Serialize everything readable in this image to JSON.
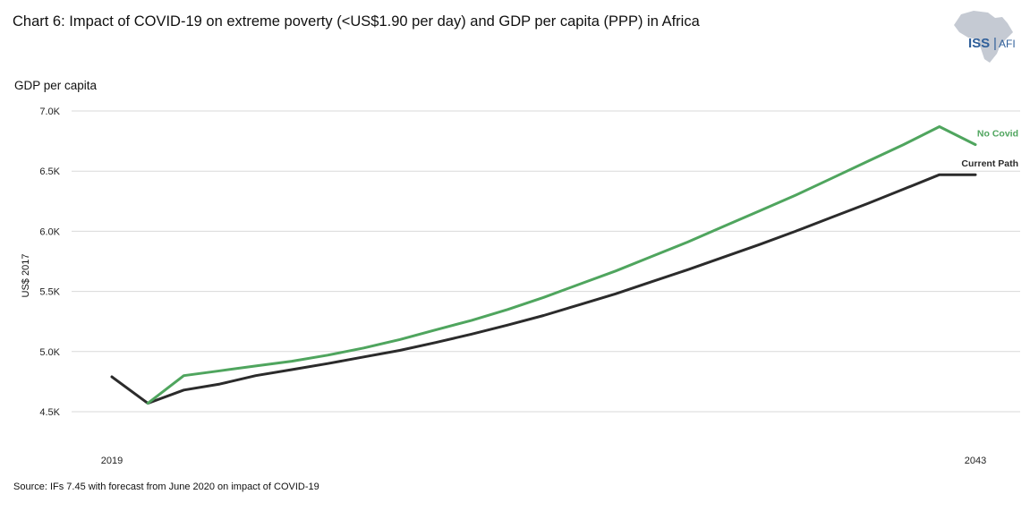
{
  "title": "Chart 6: Impact of COVID-19 on extreme poverty (<US$1.90 per day) and GDP per capita (PPP) in Africa",
  "subtitle": "GDP per capita",
  "source": "Source: IFs 7.45 with forecast from June 2020 on impact of COVID-19",
  "logo": {
    "name": "africa-map-icon",
    "text_iss": "ISS",
    "text_afi": "AFI"
  },
  "colors": {
    "no_covid": "#4fa55e",
    "current_path": "#2b2b2b",
    "grid": "#d9d9d9",
    "logo_map": "#c5cad3",
    "logo_text": "#2f5f9a"
  },
  "chart_data": {
    "type": "line",
    "title": "Chart 6: Impact of COVID-19 on extreme poverty (<US$1.90 per day) and GDP per capita (PPP) in Africa",
    "xlabel": "",
    "ylabel": "US$ 2017",
    "ylim": [
      4500,
      7000
    ],
    "y_ticks": [
      4500,
      5000,
      5500,
      6000,
      6500,
      7000
    ],
    "y_tick_labels": [
      "4.5K",
      "5.0K",
      "5.5K",
      "6.0K",
      "6.5K",
      "7.0K"
    ],
    "x_tick_labels": [
      {
        "x": 2019,
        "label": "2019"
      },
      {
        "x": 2043,
        "label": "2043"
      }
    ],
    "x": [
      2019,
      2020,
      2021,
      2022,
      2023,
      2024,
      2025,
      2026,
      2027,
      2028,
      2029,
      2030,
      2031,
      2032,
      2033,
      2034,
      2035,
      2036,
      2037,
      2038,
      2039,
      2040,
      2041,
      2042,
      2043
    ],
    "series": [
      {
        "name": "No Covid",
        "color": "#4fa55e",
        "values": [
          null,
          4570,
          4800,
          4840,
          4880,
          4920,
          4970,
          5030,
          5100,
          5180,
          5260,
          5350,
          5450,
          5560,
          5670,
          5790,
          5910,
          6040,
          6170,
          6300,
          6440,
          6580,
          6720,
          6870,
          6720
        ]
      },
      {
        "name": "Current Path",
        "color": "#2b2b2b",
        "values": [
          4790,
          4570,
          4680,
          4730,
          4800,
          4850,
          4900,
          4955,
          5010,
          5075,
          5145,
          5220,
          5300,
          5390,
          5480,
          5580,
          5680,
          5785,
          5890,
          6000,
          6115,
          6230,
          6350,
          6470,
          6470
        ]
      }
    ],
    "grid": true,
    "legend": "end-of-line labels"
  }
}
